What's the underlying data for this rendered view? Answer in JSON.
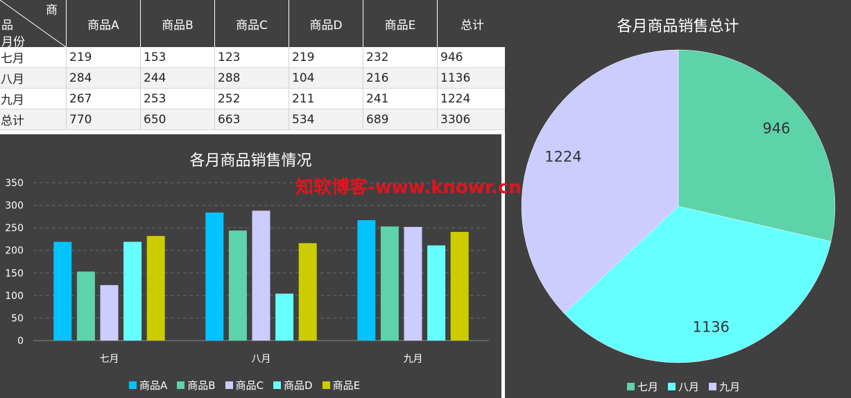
{
  "table": {
    "corner_col_label": "商",
    "corner_row_label_1": "品",
    "corner_row_label_2": "月份",
    "headers": [
      "商品A",
      "商品B",
      "商品C",
      "商品D",
      "商品E",
      "总计"
    ],
    "rows": [
      {
        "label": "七月",
        "cells": [
          "219",
          "153",
          "123",
          "219",
          "232",
          "946"
        ]
      },
      {
        "label": "八月",
        "cells": [
          "284",
          "244",
          "288",
          "104",
          "216",
          "1136"
        ]
      },
      {
        "label": "九月",
        "cells": [
          "267",
          "253",
          "252",
          "211",
          "241",
          "1224"
        ]
      },
      {
        "label": "总计",
        "cells": [
          "770",
          "650",
          "663",
          "534",
          "689",
          "3306"
        ]
      }
    ]
  },
  "watermark": "知软博客-www.knowr.cn",
  "colors": {
    "panel_bg": "#404040",
    "series": [
      "#00c3ff",
      "#5dd3a9",
      "#ccccff",
      "#66ffff",
      "#cccc00"
    ],
    "pie": [
      "#5dd3a9",
      "#66ffff",
      "#ccccff"
    ]
  },
  "chart_data": [
    {
      "type": "bar",
      "title": "各月商品销售情况",
      "categories": [
        "七月",
        "八月",
        "九月"
      ],
      "series": [
        {
          "name": "商品A",
          "values": [
            219,
            284,
            267
          ]
        },
        {
          "name": "商品B",
          "values": [
            153,
            244,
            253
          ]
        },
        {
          "name": "商品C",
          "values": [
            123,
            288,
            252
          ]
        },
        {
          "name": "商品D",
          "values": [
            219,
            104,
            211
          ]
        },
        {
          "name": "商品E",
          "values": [
            232,
            216,
            241
          ]
        }
      ],
      "ylim": [
        0,
        350
      ],
      "yticks": [
        0,
        50,
        100,
        150,
        200,
        250,
        300,
        350
      ],
      "grid": true,
      "legend": "bottom"
    },
    {
      "type": "pie",
      "title": "各月商品销售总计",
      "labels": [
        "七月",
        "八月",
        "九月"
      ],
      "values": [
        946,
        1136,
        1224
      ],
      "legend": "bottom"
    }
  ]
}
